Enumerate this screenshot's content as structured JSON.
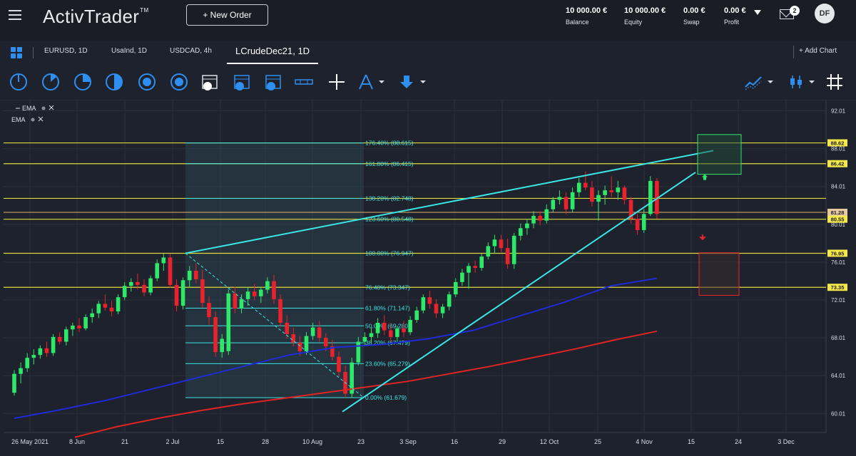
{
  "header": {
    "logo": "ActivTrader",
    "logo_tm": "TM",
    "new_order_label": "+ New Order",
    "stats": [
      {
        "value": "10 000.00 €",
        "label": "Balance"
      },
      {
        "value": "10 000.00 €",
        "label": "Equity"
      },
      {
        "value": "0.00 €",
        "label": "Swap"
      },
      {
        "value": "0.00 €",
        "label": "Profit"
      }
    ],
    "notifications_count": "2",
    "avatar_initials": "DF"
  },
  "tabs": [
    {
      "label": "EURUSD, 1D",
      "active": false
    },
    {
      "label": "UsaInd, 1D",
      "active": false
    },
    {
      "label": "USDCAD, 4h",
      "active": false
    },
    {
      "label": "LCrudeDec21, 1D",
      "active": true
    }
  ],
  "add_chart_label": "+ Add Chart",
  "indicators": [
    {
      "label": "EMA"
    },
    {
      "label": "EMA"
    }
  ],
  "chart_data": {
    "type": "candlestick",
    "x_tick_labels": [
      "26 May 2021",
      "8 Jun",
      "21",
      "2 Jul",
      "15",
      "28",
      "10 Aug",
      "23",
      "3 Sep",
      "16",
      "29",
      "12 Oct",
      "25",
      "4 Nov",
      "15",
      "24",
      "3 Dec"
    ],
    "y_tick_labels": [
      "92.01",
      "88.01",
      "84.01",
      "80.01",
      "76.01",
      "72.01",
      "68.01",
      "64.01",
      "60.01"
    ],
    "ylim": [
      58.0,
      92.5
    ],
    "fibonacci_levels": [
      {
        "label": "0.00% (61.679)",
        "price": 61.679
      },
      {
        "label": "23.60% (65.279)",
        "price": 65.279
      },
      {
        "label": "38.20% (67.479)",
        "price": 67.479
      },
      {
        "label": "50.00% (69.280)",
        "price": 69.28
      },
      {
        "label": "61.80% (71.147)",
        "price": 71.147
      },
      {
        "label": "76.40% (73.347)",
        "price": 73.347
      },
      {
        "label": "100.00% (76.947)",
        "price": 76.947
      },
      {
        "label": "123.60% (80.548)",
        "price": 80.548
      },
      {
        "label": "138.20% (82.748)",
        "price": 82.748
      },
      {
        "label": "161.80% (86.415)",
        "price": 86.415
      },
      {
        "label": "176.40% (88.615)",
        "price": 88.615
      }
    ],
    "price_tags": [
      {
        "label": "88.62",
        "price": 88.62,
        "color": "#f5e84a"
      },
      {
        "label": "86.42",
        "price": 86.42,
        "color": "#f5e84a"
      },
      {
        "label": "81.28",
        "price": 81.28,
        "color": "#e8c9a0"
      },
      {
        "label": "80.55",
        "price": 80.55,
        "color": "#f5e84a"
      },
      {
        "label": "76.95",
        "price": 76.95,
        "color": "#f5e84a"
      },
      {
        "label": "73.35",
        "price": 73.35,
        "color": "#f5e84a"
      }
    ],
    "candles": [
      {
        "o": 62.2,
        "h": 64.6,
        "l": 61.9,
        "c": 64.2
      },
      {
        "o": 64.2,
        "h": 65.4,
        "l": 63.2,
        "c": 64.8
      },
      {
        "o": 64.8,
        "h": 66.4,
        "l": 64.4,
        "c": 65.9
      },
      {
        "o": 65.9,
        "h": 66.8,
        "l": 65.2,
        "c": 66.2
      },
      {
        "o": 66.2,
        "h": 67.2,
        "l": 65.8,
        "c": 66.9
      },
      {
        "o": 66.9,
        "h": 67.6,
        "l": 66.0,
        "c": 66.4
      },
      {
        "o": 66.4,
        "h": 68.4,
        "l": 66.1,
        "c": 68.1
      },
      {
        "o": 68.1,
        "h": 68.6,
        "l": 67.3,
        "c": 67.6
      },
      {
        "o": 67.6,
        "h": 69.2,
        "l": 67.2,
        "c": 68.9
      },
      {
        "o": 68.9,
        "h": 69.6,
        "l": 68.2,
        "c": 69.3
      },
      {
        "o": 69.3,
        "h": 70.1,
        "l": 68.6,
        "c": 69.0
      },
      {
        "o": 69.0,
        "h": 70.5,
        "l": 68.8,
        "c": 70.2
      },
      {
        "o": 70.2,
        "h": 71.1,
        "l": 69.6,
        "c": 70.6
      },
      {
        "o": 70.6,
        "h": 71.9,
        "l": 70.1,
        "c": 71.6
      },
      {
        "o": 71.6,
        "h": 72.6,
        "l": 70.9,
        "c": 71.2
      },
      {
        "o": 71.2,
        "h": 71.9,
        "l": 70.3,
        "c": 70.8
      },
      {
        "o": 70.8,
        "h": 72.6,
        "l": 70.5,
        "c": 72.3
      },
      {
        "o": 72.3,
        "h": 73.9,
        "l": 72.0,
        "c": 73.5
      },
      {
        "o": 73.5,
        "h": 74.3,
        "l": 72.9,
        "c": 73.9
      },
      {
        "o": 73.9,
        "h": 74.8,
        "l": 73.1,
        "c": 73.6
      },
      {
        "o": 73.6,
        "h": 74.2,
        "l": 72.4,
        "c": 72.8
      },
      {
        "o": 72.8,
        "h": 74.6,
        "l": 72.5,
        "c": 74.3
      },
      {
        "o": 74.3,
        "h": 76.3,
        "l": 74.0,
        "c": 75.9
      },
      {
        "o": 75.9,
        "h": 76.9,
        "l": 75.1,
        "c": 76.5
      },
      {
        "o": 76.5,
        "h": 76.9,
        "l": 73.3,
        "c": 73.6
      },
      {
        "o": 73.6,
        "h": 74.2,
        "l": 70.8,
        "c": 71.4
      },
      {
        "o": 71.4,
        "h": 74.4,
        "l": 71.0,
        "c": 74.1
      },
      {
        "o": 74.1,
        "h": 75.6,
        "l": 73.3,
        "c": 75.1
      },
      {
        "o": 75.1,
        "h": 75.9,
        "l": 73.8,
        "c": 74.2
      },
      {
        "o": 74.2,
        "h": 75.2,
        "l": 71.2,
        "c": 71.7
      },
      {
        "o": 71.7,
        "h": 72.4,
        "l": 69.4,
        "c": 70.2
      },
      {
        "o": 70.2,
        "h": 70.8,
        "l": 66.0,
        "c": 66.5
      },
      {
        "o": 66.5,
        "h": 68.4,
        "l": 65.9,
        "c": 67.9
      },
      {
        "o": 66.6,
        "h": 73.1,
        "l": 66.2,
        "c": 72.7
      },
      {
        "o": 72.7,
        "h": 73.4,
        "l": 70.6,
        "c": 71.1
      },
      {
        "o": 71.1,
        "h": 72.6,
        "l": 70.6,
        "c": 72.1
      },
      {
        "o": 72.1,
        "h": 73.4,
        "l": 71.4,
        "c": 72.9
      },
      {
        "o": 72.9,
        "h": 73.7,
        "l": 72.0,
        "c": 72.4
      },
      {
        "o": 72.4,
        "h": 73.4,
        "l": 71.7,
        "c": 73.1
      },
      {
        "o": 73.1,
        "h": 74.4,
        "l": 72.7,
        "c": 74.0
      },
      {
        "o": 74.0,
        "h": 74.7,
        "l": 71.6,
        "c": 72.1
      },
      {
        "o": 72.1,
        "h": 72.6,
        "l": 69.2,
        "c": 69.6
      },
      {
        "o": 69.6,
        "h": 70.4,
        "l": 67.9,
        "c": 68.4
      },
      {
        "o": 68.4,
        "h": 69.1,
        "l": 67.1,
        "c": 67.5
      },
      {
        "o": 67.5,
        "h": 68.2,
        "l": 66.1,
        "c": 66.6
      },
      {
        "o": 66.6,
        "h": 68.6,
        "l": 66.2,
        "c": 68.2
      },
      {
        "o": 68.2,
        "h": 69.6,
        "l": 67.8,
        "c": 69.1
      },
      {
        "o": 69.1,
        "h": 69.8,
        "l": 67.6,
        "c": 68.0
      },
      {
        "o": 68.0,
        "h": 68.5,
        "l": 66.6,
        "c": 67.1
      },
      {
        "o": 67.1,
        "h": 67.8,
        "l": 65.6,
        "c": 66.0
      },
      {
        "o": 66.0,
        "h": 66.6,
        "l": 63.9,
        "c": 64.4
      },
      {
        "o": 64.4,
        "h": 65.1,
        "l": 61.7,
        "c": 62.1
      },
      {
        "o": 62.1,
        "h": 65.9,
        "l": 61.7,
        "c": 65.4
      },
      {
        "o": 65.4,
        "h": 68.1,
        "l": 65.1,
        "c": 67.6
      },
      {
        "o": 67.6,
        "h": 68.6,
        "l": 67.1,
        "c": 68.1
      },
      {
        "o": 68.1,
        "h": 69.1,
        "l": 67.5,
        "c": 68.5
      },
      {
        "o": 68.5,
        "h": 70.1,
        "l": 68.0,
        "c": 69.6
      },
      {
        "o": 69.6,
        "h": 70.4,
        "l": 68.3,
        "c": 68.8
      },
      {
        "o": 68.8,
        "h": 69.6,
        "l": 67.6,
        "c": 68.1
      },
      {
        "o": 68.1,
        "h": 69.3,
        "l": 67.6,
        "c": 69.0
      },
      {
        "o": 69.0,
        "h": 69.8,
        "l": 68.1,
        "c": 68.6
      },
      {
        "o": 68.6,
        "h": 70.3,
        "l": 68.3,
        "c": 69.9
      },
      {
        "o": 69.9,
        "h": 71.3,
        "l": 69.6,
        "c": 70.9
      },
      {
        "o": 70.9,
        "h": 72.6,
        "l": 70.6,
        "c": 72.3
      },
      {
        "o": 72.3,
        "h": 73.0,
        "l": 71.1,
        "c": 71.6
      },
      {
        "o": 71.6,
        "h": 72.1,
        "l": 70.1,
        "c": 70.6
      },
      {
        "o": 70.6,
        "h": 71.6,
        "l": 70.1,
        "c": 71.3
      },
      {
        "o": 71.3,
        "h": 72.9,
        "l": 70.9,
        "c": 72.6
      },
      {
        "o": 72.6,
        "h": 74.3,
        "l": 72.3,
        "c": 73.9
      },
      {
        "o": 73.9,
        "h": 75.3,
        "l": 73.5,
        "c": 74.9
      },
      {
        "o": 74.9,
        "h": 75.9,
        "l": 73.2,
        "c": 75.6
      },
      {
        "o": 75.6,
        "h": 76.2,
        "l": 74.9,
        "c": 75.4
      },
      {
        "o": 75.4,
        "h": 76.9,
        "l": 75.1,
        "c": 76.6
      },
      {
        "o": 76.6,
        "h": 78.1,
        "l": 76.3,
        "c": 77.7
      },
      {
        "o": 77.7,
        "h": 78.9,
        "l": 76.9,
        "c": 78.4
      },
      {
        "o": 78.4,
        "h": 78.9,
        "l": 77.1,
        "c": 77.5
      },
      {
        "o": 77.5,
        "h": 78.5,
        "l": 75.3,
        "c": 75.8
      },
      {
        "o": 75.8,
        "h": 79.1,
        "l": 75.3,
        "c": 78.8
      },
      {
        "o": 78.8,
        "h": 80.1,
        "l": 78.3,
        "c": 79.6
      },
      {
        "o": 79.6,
        "h": 80.6,
        "l": 78.9,
        "c": 80.1
      },
      {
        "o": 80.1,
        "h": 81.4,
        "l": 79.6,
        "c": 80.9
      },
      {
        "o": 80.9,
        "h": 81.4,
        "l": 79.9,
        "c": 80.4
      },
      {
        "o": 80.4,
        "h": 82.1,
        "l": 80.1,
        "c": 81.6
      },
      {
        "o": 81.6,
        "h": 82.9,
        "l": 81.3,
        "c": 82.6
      },
      {
        "o": 82.6,
        "h": 83.6,
        "l": 82.1,
        "c": 82.9
      },
      {
        "o": 82.9,
        "h": 83.4,
        "l": 81.1,
        "c": 81.6
      },
      {
        "o": 81.6,
        "h": 83.9,
        "l": 81.3,
        "c": 83.4
      },
      {
        "o": 83.4,
        "h": 84.9,
        "l": 82.9,
        "c": 84.4
      },
      {
        "o": 84.4,
        "h": 85.6,
        "l": 83.6,
        "c": 83.9
      },
      {
        "o": 83.9,
        "h": 84.6,
        "l": 81.9,
        "c": 82.4
      },
      {
        "o": 82.4,
        "h": 83.6,
        "l": 80.4,
        "c": 83.1
      },
      {
        "o": 83.1,
        "h": 84.1,
        "l": 82.1,
        "c": 83.6
      },
      {
        "o": 83.6,
        "h": 85.1,
        "l": 82.9,
        "c": 83.4
      },
      {
        "o": 83.4,
        "h": 84.6,
        "l": 82.6,
        "c": 83.9
      },
      {
        "o": 83.9,
        "h": 84.1,
        "l": 82.1,
        "c": 82.6
      },
      {
        "o": 82.6,
        "h": 82.9,
        "l": 80.1,
        "c": 80.6
      },
      {
        "o": 80.6,
        "h": 81.1,
        "l": 78.9,
        "c": 79.4
      },
      {
        "o": 79.4,
        "h": 81.6,
        "l": 79.1,
        "c": 81.1
      },
      {
        "o": 81.1,
        "h": 85.1,
        "l": 80.9,
        "c": 84.6
      },
      {
        "o": 84.6,
        "h": 84.9,
        "l": 80.6,
        "c": 81.1
      }
    ]
  },
  "colors": {
    "bg": "#1e222d",
    "up": "#2ee86a",
    "down": "#e8232e",
    "fib_line": "#3ae6e6",
    "level_line": "#e0d83c",
    "ema_fast": "#1f2bd6",
    "ema_slow": "#e02424"
  }
}
